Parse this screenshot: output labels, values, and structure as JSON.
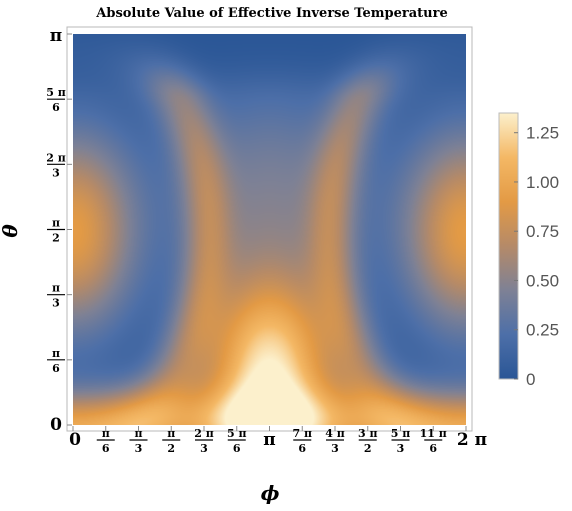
{
  "chart_data": {
    "type": "heatmap",
    "title": "Absolute Value of Effective Inverse Temperature",
    "xlabel": "ϕ",
    "ylabel": "θ",
    "xlim": [
      0,
      6.2832
    ],
    "ylim": [
      0,
      3.1416
    ],
    "x_ticks": [
      {
        "value": 0,
        "num": "0",
        "den": ""
      },
      {
        "value": 0.5236,
        "num": "π",
        "den": "6"
      },
      {
        "value": 1.0472,
        "num": "π",
        "den": "3"
      },
      {
        "value": 1.5708,
        "num": "π",
        "den": "2"
      },
      {
        "value": 2.0944,
        "num": "2 π",
        "den": "3"
      },
      {
        "value": 2.618,
        "num": "5 π",
        "den": "6"
      },
      {
        "value": 3.1416,
        "num": "π",
        "den": ""
      },
      {
        "value": 3.6652,
        "num": "7 π",
        "den": "6"
      },
      {
        "value": 4.1888,
        "num": "4 π",
        "den": "3"
      },
      {
        "value": 4.7124,
        "num": "3 π",
        "den": "2"
      },
      {
        "value": 5.236,
        "num": "5 π",
        "den": "3"
      },
      {
        "value": 5.7596,
        "num": "11 π",
        "den": "6"
      },
      {
        "value": 6.2832,
        "num": "2 π",
        "den": ""
      }
    ],
    "y_ticks": [
      {
        "value": 0,
        "num": "0",
        "den": ""
      },
      {
        "value": 0.5236,
        "num": "π",
        "den": "6"
      },
      {
        "value": 1.0472,
        "num": "π",
        "den": "3"
      },
      {
        "value": 1.5708,
        "num": "π",
        "den": "2"
      },
      {
        "value": 2.0944,
        "num": "2 π",
        "den": "3"
      },
      {
        "value": 2.618,
        "num": "5 π",
        "den": "6"
      },
      {
        "value": 3.1416,
        "num": "π",
        "den": ""
      }
    ],
    "colorbar": {
      "min": 0,
      "max": 1.35,
      "ticks": [
        "0",
        "0.25",
        "0.50",
        "0.75",
        "1.00",
        "1.25"
      ],
      "tick_values": [
        0,
        0.25,
        0.5,
        0.75,
        1.0,
        1.25
      ],
      "colormap": [
        "#2a5696",
        "#4d6fa8",
        "#7e8195",
        "#b58a68",
        "#e39a45",
        "#f4b865",
        "#fcf0cc"
      ]
    },
    "features": [
      {
        "kind": "peak",
        "x": 3.1416,
        "y": 0.42,
        "value": 1.3
      },
      {
        "kind": "peak",
        "x": 0,
        "y": 1.55,
        "value": 0.9
      },
      {
        "kind": "peak",
        "x": 6.2832,
        "y": 1.55,
        "value": 0.9
      },
      {
        "kind": "minimum",
        "x": 3.1416,
        "y": 3.1416,
        "value": 0.0
      }
    ]
  }
}
